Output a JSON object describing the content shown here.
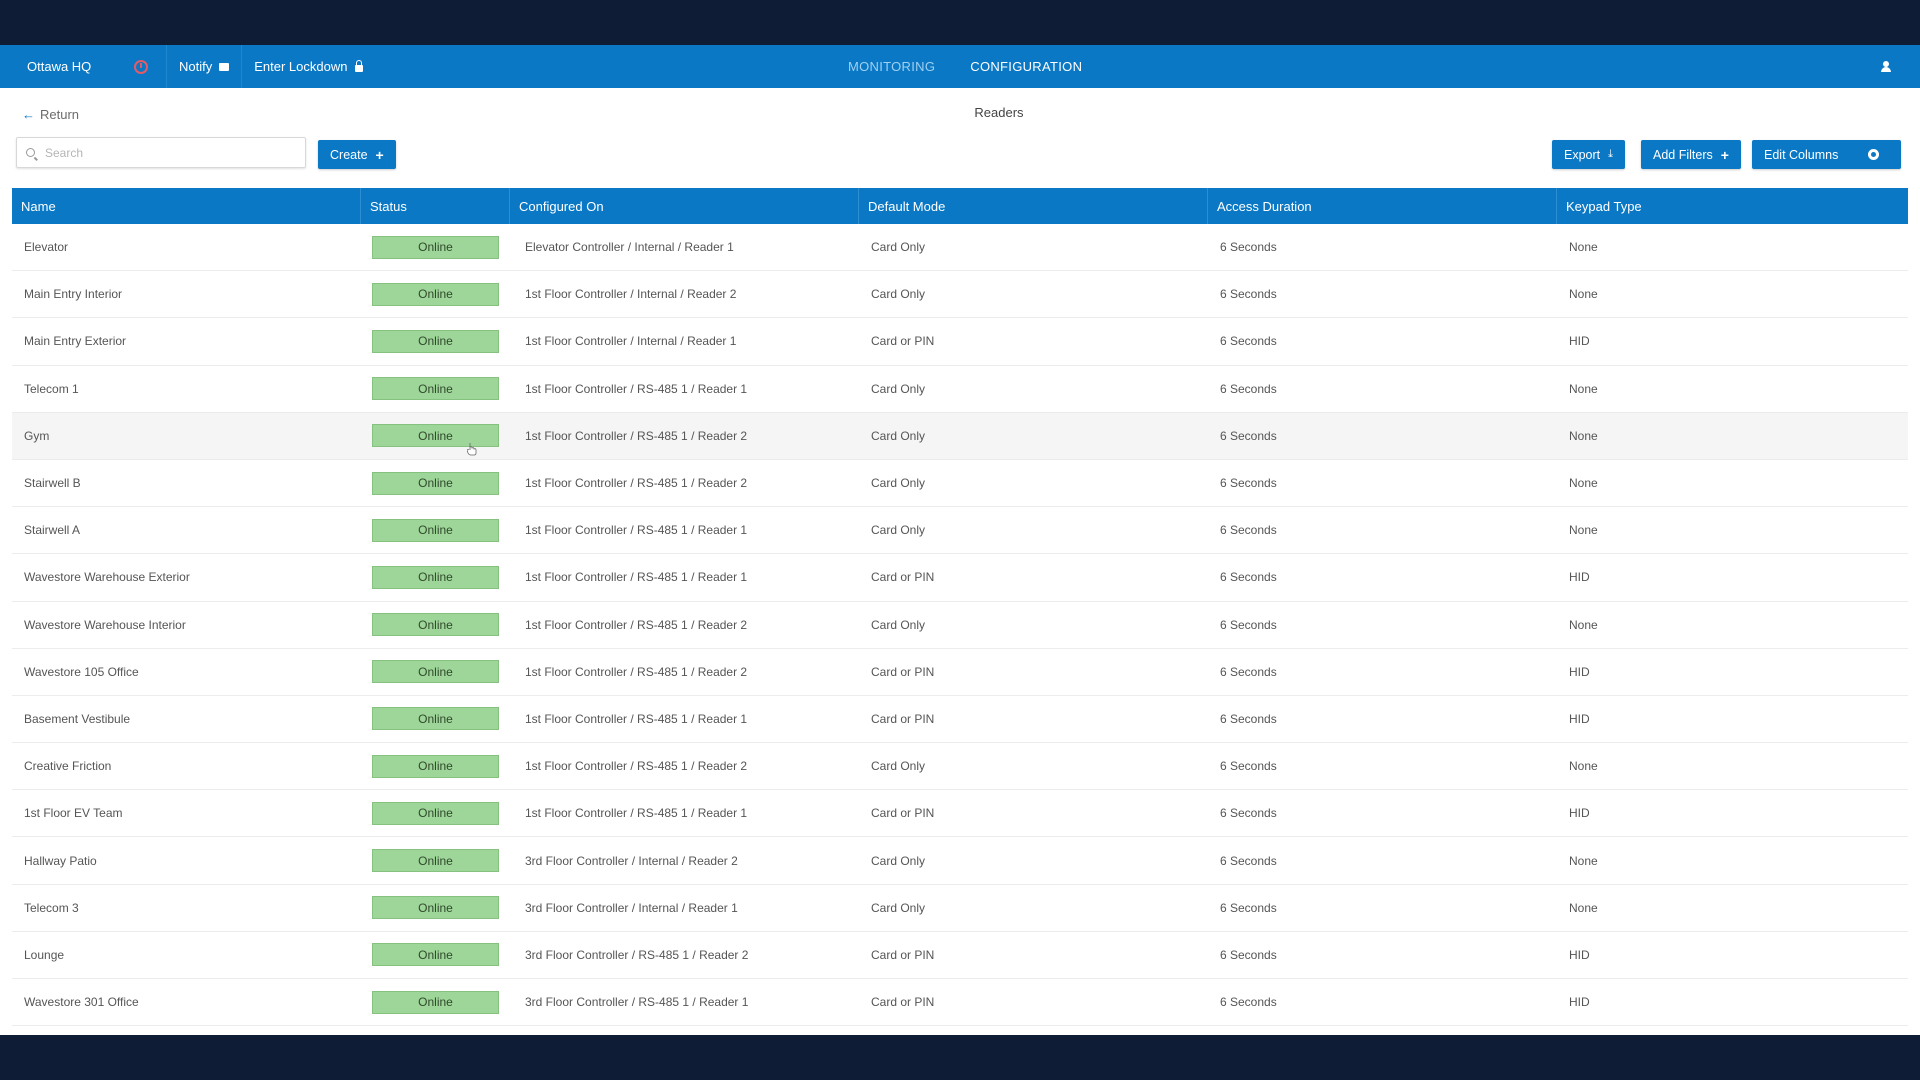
{
  "topnav": {
    "site": "Ottawa HQ",
    "notify_label": "Notify",
    "lockdown_label": "Enter Lockdown",
    "tabs": [
      {
        "label": "MONITORING",
        "active": false
      },
      {
        "label": "CONFIGURATION",
        "active": true
      }
    ]
  },
  "subheader": {
    "return_label": "Return",
    "page_title": "Readers",
    "search_placeholder": "Search",
    "create_label": "Create",
    "export_label": "Export",
    "add_filters_label": "Add Filters",
    "edit_columns_label": "Edit Columns"
  },
  "colors": {
    "accent": "#0a78c4",
    "online_badge": "#9ed598",
    "frame": "#0e1c36"
  },
  "table": {
    "columns": [
      "Name",
      "Status",
      "Configured On",
      "Default Mode",
      "Access Duration",
      "Keypad Type"
    ],
    "rows": [
      {
        "name": "Elevator",
        "status": "Online",
        "configured_on": "Elevator Controller / Internal / Reader 1",
        "default_mode": "Card Only",
        "access_duration": "6 Seconds",
        "keypad_type": "None"
      },
      {
        "name": "Main Entry Interior",
        "status": "Online",
        "configured_on": "1st Floor Controller / Internal / Reader 2",
        "default_mode": "Card Only",
        "access_duration": "6 Seconds",
        "keypad_type": "None"
      },
      {
        "name": "Main Entry Exterior",
        "status": "Online",
        "configured_on": "1st Floor Controller / Internal / Reader 1",
        "default_mode": "Card or PIN",
        "access_duration": "6 Seconds",
        "keypad_type": "HID"
      },
      {
        "name": "Telecom 1",
        "status": "Online",
        "configured_on": "1st Floor Controller / RS-485 1 / Reader 1",
        "default_mode": "Card Only",
        "access_duration": "6 Seconds",
        "keypad_type": "None"
      },
      {
        "name": "Gym",
        "status": "Online",
        "configured_on": "1st Floor Controller / RS-485 1 / Reader 2",
        "default_mode": "Card Only",
        "access_duration": "6 Seconds",
        "keypad_type": "None"
      },
      {
        "name": "Stairwell B",
        "status": "Online",
        "configured_on": "1st Floor Controller / RS-485 1 / Reader 2",
        "default_mode": "Card Only",
        "access_duration": "6 Seconds",
        "keypad_type": "None"
      },
      {
        "name": "Stairwell A",
        "status": "Online",
        "configured_on": "1st Floor Controller / RS-485 1 / Reader 1",
        "default_mode": "Card Only",
        "access_duration": "6 Seconds",
        "keypad_type": "None"
      },
      {
        "name": "Wavestore Warehouse Exterior",
        "status": "Online",
        "configured_on": "1st Floor Controller / RS-485 1 / Reader 1",
        "default_mode": "Card or PIN",
        "access_duration": "6 Seconds",
        "keypad_type": "HID"
      },
      {
        "name": "Wavestore Warehouse Interior",
        "status": "Online",
        "configured_on": "1st Floor Controller / RS-485 1 / Reader 2",
        "default_mode": "Card Only",
        "access_duration": "6 Seconds",
        "keypad_type": "None"
      },
      {
        "name": "Wavestore 105 Office",
        "status": "Online",
        "configured_on": "1st Floor Controller / RS-485 1 / Reader 2",
        "default_mode": "Card or PIN",
        "access_duration": "6 Seconds",
        "keypad_type": "HID"
      },
      {
        "name": "Basement Vestibule",
        "status": "Online",
        "configured_on": "1st Floor Controller / RS-485 1 / Reader 1",
        "default_mode": "Card or PIN",
        "access_duration": "6 Seconds",
        "keypad_type": "HID"
      },
      {
        "name": "Creative Friction",
        "status": "Online",
        "configured_on": "1st Floor Controller / RS-485 1 / Reader 2",
        "default_mode": "Card Only",
        "access_duration": "6 Seconds",
        "keypad_type": "None"
      },
      {
        "name": "1st Floor EV Team",
        "status": "Online",
        "configured_on": "1st Floor Controller / RS-485 1 / Reader 1",
        "default_mode": "Card or PIN",
        "access_duration": "6 Seconds",
        "keypad_type": "HID"
      },
      {
        "name": "Hallway Patio",
        "status": "Online",
        "configured_on": "3rd Floor Controller / Internal / Reader 2",
        "default_mode": "Card Only",
        "access_duration": "6 Seconds",
        "keypad_type": "None"
      },
      {
        "name": "Telecom 3",
        "status": "Online",
        "configured_on": "3rd Floor Controller / Internal / Reader 1",
        "default_mode": "Card Only",
        "access_duration": "6 Seconds",
        "keypad_type": "None"
      },
      {
        "name": "Lounge",
        "status": "Online",
        "configured_on": "3rd Floor Controller / RS-485 1 / Reader 2",
        "default_mode": "Card or PIN",
        "access_duration": "6 Seconds",
        "keypad_type": "HID"
      },
      {
        "name": "Wavestore 301 Office",
        "status": "Online",
        "configured_on": "3rd Floor Controller / RS-485 1 / Reader 1",
        "default_mode": "Card or PIN",
        "access_duration": "6 Seconds",
        "keypad_type": "HID"
      }
    ]
  }
}
